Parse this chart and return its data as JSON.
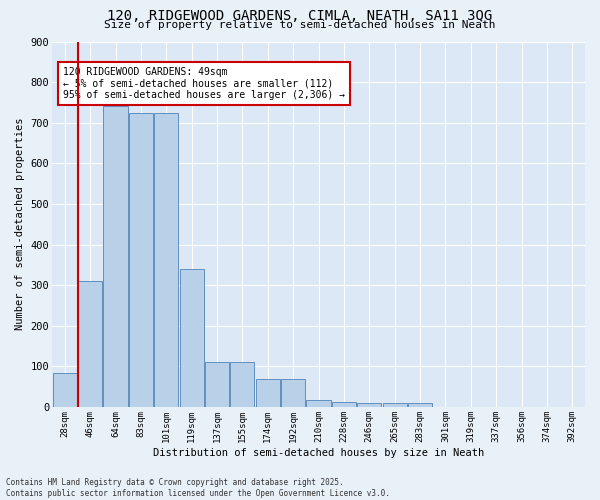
{
  "title": "120, RIDGEWOOD GARDENS, CIMLA, NEATH, SA11 3QG",
  "subtitle": "Size of property relative to semi-detached houses in Neath",
  "xlabel": "Distribution of semi-detached houses by size in Neath",
  "ylabel": "Number of semi-detached properties",
  "categories": [
    "28sqm",
    "46sqm",
    "64sqm",
    "83sqm",
    "101sqm",
    "119sqm",
    "137sqm",
    "155sqm",
    "174sqm",
    "192sqm",
    "210sqm",
    "228sqm",
    "246sqm",
    "265sqm",
    "283sqm",
    "301sqm",
    "319sqm",
    "337sqm",
    "356sqm",
    "374sqm",
    "392sqm"
  ],
  "values": [
    83,
    310,
    740,
    725,
    725,
    340,
    110,
    110,
    68,
    68,
    18,
    12,
    10,
    10,
    9,
    0,
    0,
    0,
    0,
    0,
    0
  ],
  "bar_color": "#b8d0e8",
  "bar_edge_color": "#6090c0",
  "annotation_title": "120 RIDGEWOOD GARDENS: 49sqm",
  "annotation_line2": "← 5% of semi-detached houses are smaller (112)",
  "annotation_line3": "95% of semi-detached houses are larger (2,306) →",
  "annotation_box_color": "#cc0000",
  "vline_color": "#cc0000",
  "ylim": [
    0,
    900
  ],
  "yticks": [
    0,
    100,
    200,
    300,
    400,
    500,
    600,
    700,
    800,
    900
  ],
  "bg_color": "#dce8f5",
  "fig_bg_color": "#e8f0f8",
  "grid_color": "#ffffff",
  "footer_line1": "Contains HM Land Registry data © Crown copyright and database right 2025.",
  "footer_line2": "Contains public sector information licensed under the Open Government Licence v3.0."
}
